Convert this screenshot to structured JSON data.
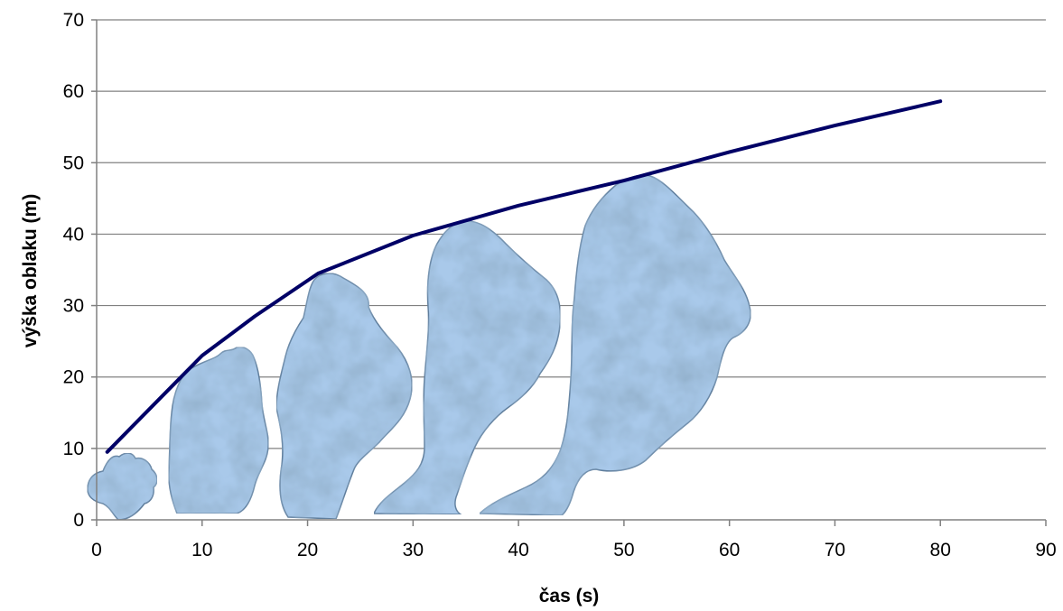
{
  "chart_data": {
    "type": "line",
    "title": "",
    "xlabel": "čas (s)",
    "ylabel": "výška oblaku (m)",
    "xlim": [
      0,
      90
    ],
    "ylim": [
      0,
      70
    ],
    "x_ticks": [
      0,
      10,
      20,
      30,
      40,
      50,
      60,
      70,
      80,
      90
    ],
    "y_ticks": [
      0,
      10,
      20,
      30,
      40,
      50,
      60,
      70
    ],
    "grid": "horizontal",
    "series": [
      {
        "color": "#000066",
        "points": [
          {
            "x": 1,
            "y": 9.5
          },
          {
            "x": 5,
            "y": 15.5
          },
          {
            "x": 10,
            "y": 23
          },
          {
            "x": 15,
            "y": 28.5
          },
          {
            "x": 21,
            "y": 34.5
          },
          {
            "x": 30,
            "y": 39.8
          },
          {
            "x": 40,
            "y": 44
          },
          {
            "x": 50,
            "y": 47.5
          },
          {
            "x": 60,
            "y": 51.5
          },
          {
            "x": 70,
            "y": 55.2
          },
          {
            "x": 80,
            "y": 58.6
          }
        ]
      }
    ],
    "illustrations": [
      {
        "name": "cloud-1",
        "x_center": 3,
        "height": 9.5
      },
      {
        "name": "cloud-2",
        "x_center": 11,
        "height": 24
      },
      {
        "name": "cloud-3",
        "x_center": 22,
        "height": 34.5
      },
      {
        "name": "cloud-4",
        "x_center": 35,
        "height": 42
      },
      {
        "name": "cloud-5",
        "x_center": 52,
        "height": 48
      }
    ],
    "colors": {
      "line": "#000066",
      "grid": "#808080",
      "axis": "#808080",
      "cloud_light": "#a9c9ea",
      "cloud_dark": "#4e6f91"
    }
  }
}
